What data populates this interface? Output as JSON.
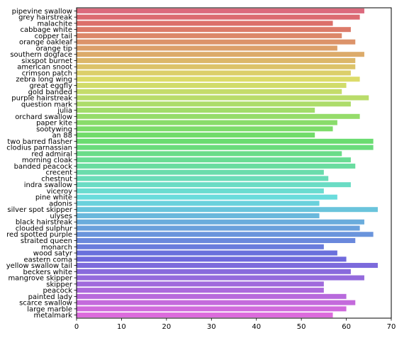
{
  "chart_data": {
    "type": "bar",
    "orientation": "horizontal",
    "title": "",
    "xlabel": "",
    "ylabel": "",
    "xlim": [
      0,
      70
    ],
    "xticks": [
      0,
      10,
      20,
      30,
      40,
      50,
      60,
      70
    ],
    "grid": false,
    "legend": "none",
    "categories": [
      "pipevine swallow",
      "grey hairstreak",
      "malachite",
      "cabbage white",
      "copper tail",
      "orange oakleaf",
      "orange tip",
      "southern dogface",
      "sixspot burnet",
      "american snoot",
      "crimson patch",
      "zebra long wing",
      "great eggfly",
      "gold banded",
      "purple hairstreak",
      "question mark",
      "julia",
      "orchard swallow",
      "paper kite",
      "sootywing",
      "an 88",
      "two barred flasher",
      "clodius parnassian",
      "red admiral",
      "morning cloak",
      "banded peacock",
      "crecent",
      "chestnut",
      "indra swallow",
      "viceroy",
      "pine white",
      "adonis",
      "silver spot skipper",
      "ulyses",
      "black hairstreak",
      "clouded sulphur",
      "red spotted purple",
      "straited queen",
      "monarch",
      "wood satyr",
      "eastern coma",
      "yellow swallow tail",
      "beckers white",
      "mangrove skipper",
      "skipper",
      "peacock",
      "painted lady",
      "scarce swallow",
      "large marble",
      "metalmark"
    ],
    "values": [
      64,
      63,
      57,
      61,
      59,
      62,
      58,
      64,
      62,
      62,
      61,
      63,
      60,
      59,
      65,
      61,
      53,
      63,
      58,
      57,
      53,
      66,
      66,
      59,
      61,
      62,
      55,
      56,
      61,
      55,
      58,
      54,
      67,
      54,
      64,
      63,
      66,
      62,
      55,
      58,
      60,
      67,
      61,
      64,
      55,
      55,
      60,
      62,
      60,
      57
    ]
  }
}
